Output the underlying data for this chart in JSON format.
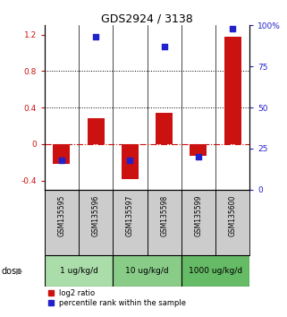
{
  "title": "GDS2924 / 3138",
  "samples": [
    "GSM135595",
    "GSM135596",
    "GSM135597",
    "GSM135598",
    "GSM135599",
    "GSM135600"
  ],
  "log2_ratio": [
    -0.22,
    0.28,
    -0.38,
    0.34,
    -0.13,
    1.18
  ],
  "percentile_rank": [
    18,
    93,
    18,
    87,
    20,
    98
  ],
  "dose_groups": [
    {
      "label": "1 ug/kg/d",
      "samples": [
        0,
        1
      ],
      "color": "#aaddaa"
    },
    {
      "label": "10 ug/kg/d",
      "samples": [
        2,
        3
      ],
      "color": "#88cc88"
    },
    {
      "label": "1000 ug/kg/d",
      "samples": [
        4,
        5
      ],
      "color": "#66bb66"
    }
  ],
  "ylim_left": [
    -0.5,
    1.3
  ],
  "ylim_right": [
    0,
    100
  ],
  "yticks_left": [
    -0.4,
    0.0,
    0.4,
    0.8,
    1.2
  ],
  "yticks_right": [
    0,
    25,
    50,
    75,
    100
  ],
  "hlines_dotted": [
    0.4,
    0.8
  ],
  "zero_line": 0.0,
  "bar_color": "#cc1111",
  "dot_color": "#2222cc",
  "bar_width": 0.5,
  "dot_size": 22,
  "background_color": "#ffffff",
  "legend_items": [
    "log2 ratio",
    "percentile rank within the sample"
  ]
}
